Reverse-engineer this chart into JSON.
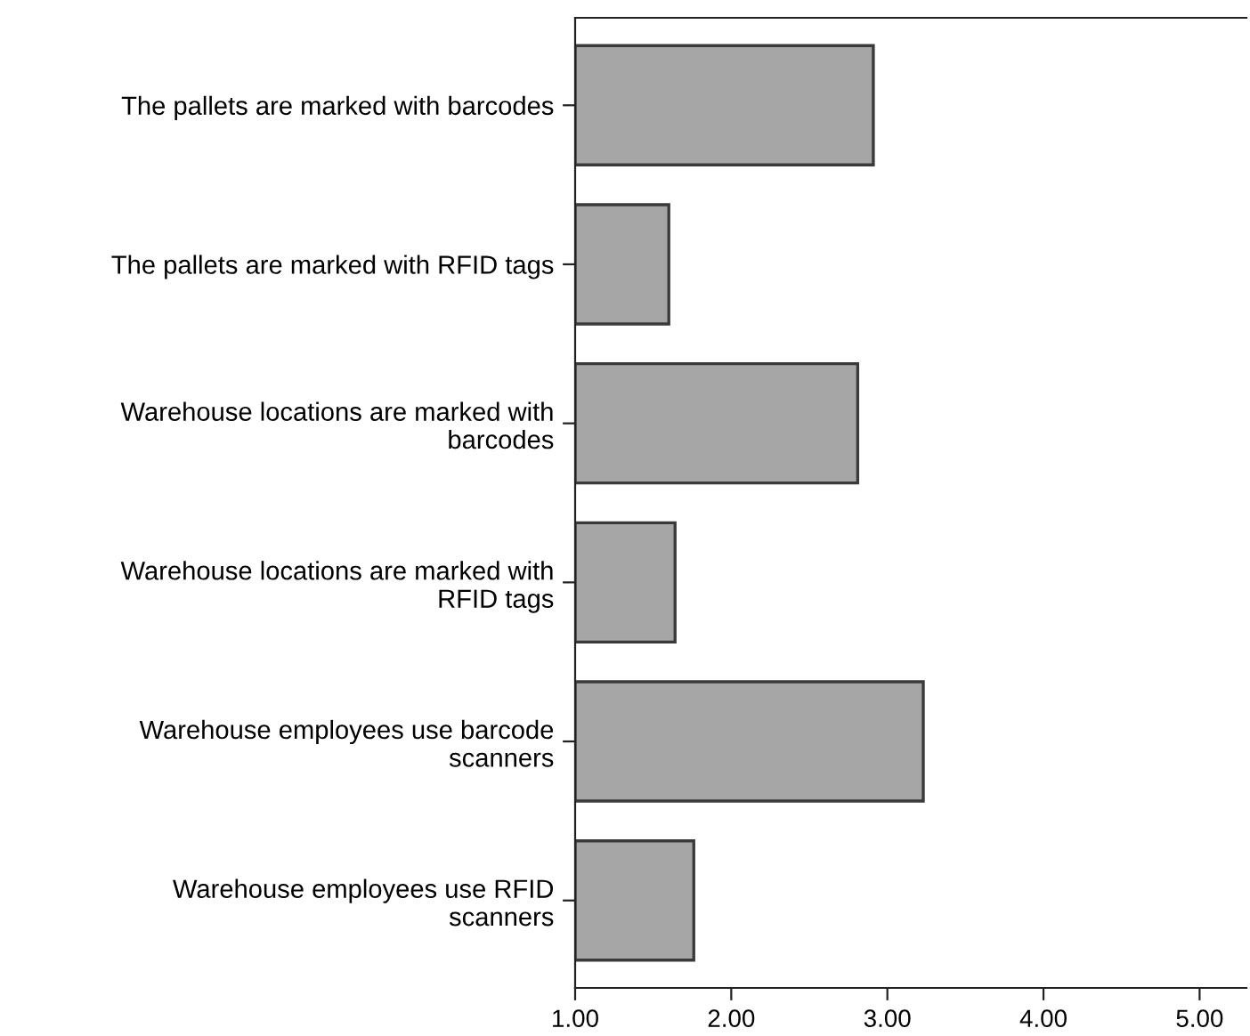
{
  "chart_data": {
    "type": "bar",
    "orientation": "horizontal",
    "categories": [
      "The pallets are marked with barcodes",
      "The pallets are marked with RFID tags",
      "Warehouse locations are marked with\nbarcodes",
      "Warehouse locations are marked with\nRFID tags",
      "Warehouse employees use barcode\nscanners",
      "Warehouse employees use RFID\nscanners"
    ],
    "values": [
      2.91,
      1.6,
      2.81,
      1.64,
      3.23,
      1.76
    ],
    "color": "#a6a6a6",
    "xlim": [
      1.0,
      5.3
    ],
    "xticks": [
      {
        "value": 1,
        "label": "1.00"
      },
      {
        "value": 2,
        "label": "2.00"
      },
      {
        "value": 3,
        "label": "3.00"
      },
      {
        "value": 4,
        "label": "4.00"
      },
      {
        "value": 5,
        "label": "5.00"
      }
    ],
    "grid": false
  }
}
